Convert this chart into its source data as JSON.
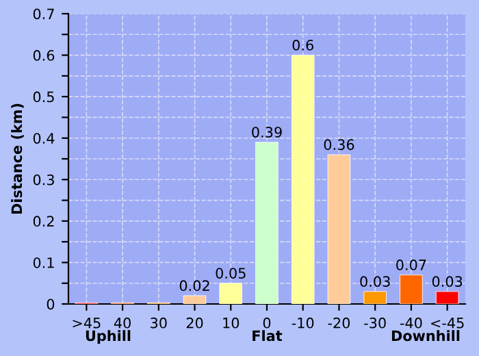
{
  "chart_data": {
    "type": "bar",
    "ylabel": "Distance (km)",
    "categories": [
      ">45",
      "40",
      "30",
      "20",
      "10",
      "0",
      "-10",
      "-20",
      "-30",
      "-40",
      "<-45"
    ],
    "values": [
      0.003,
      0.003,
      0.003,
      0.02,
      0.05,
      0.39,
      0.6,
      0.36,
      0.03,
      0.07,
      0.03
    ],
    "value_labels": [
      null,
      null,
      null,
      "0.02",
      "0.05",
      "0.39",
      "0.6",
      "0.36",
      "0.03",
      "0.07",
      "0.03"
    ],
    "colors": [
      "#ff0000",
      "#ff6600",
      "#ff9900",
      "#ffcc99",
      "#ffff99",
      "#ccffcc",
      "#ffff99",
      "#ffcc99",
      "#ff9900",
      "#ff6600",
      "#ff0000"
    ],
    "ylim": [
      0,
      0.7
    ],
    "yticks": [
      0,
      {
        "value": 0.05,
        "label": null
      },
      0.1,
      {
        "value": 0.15,
        "label": null
      },
      0.2,
      {
        "value": 0.25,
        "label": null
      },
      0.3,
      {
        "value": 0.35,
        "label": null
      },
      0.4,
      {
        "value": 0.45,
        "label": null
      },
      0.5,
      {
        "value": 0.55,
        "label": null
      },
      0.6,
      {
        "value": 0.65,
        "label": null
      },
      0.7
    ],
    "grid": true,
    "annotations": [
      "Uphill",
      "Flat",
      "Downhill"
    ]
  }
}
